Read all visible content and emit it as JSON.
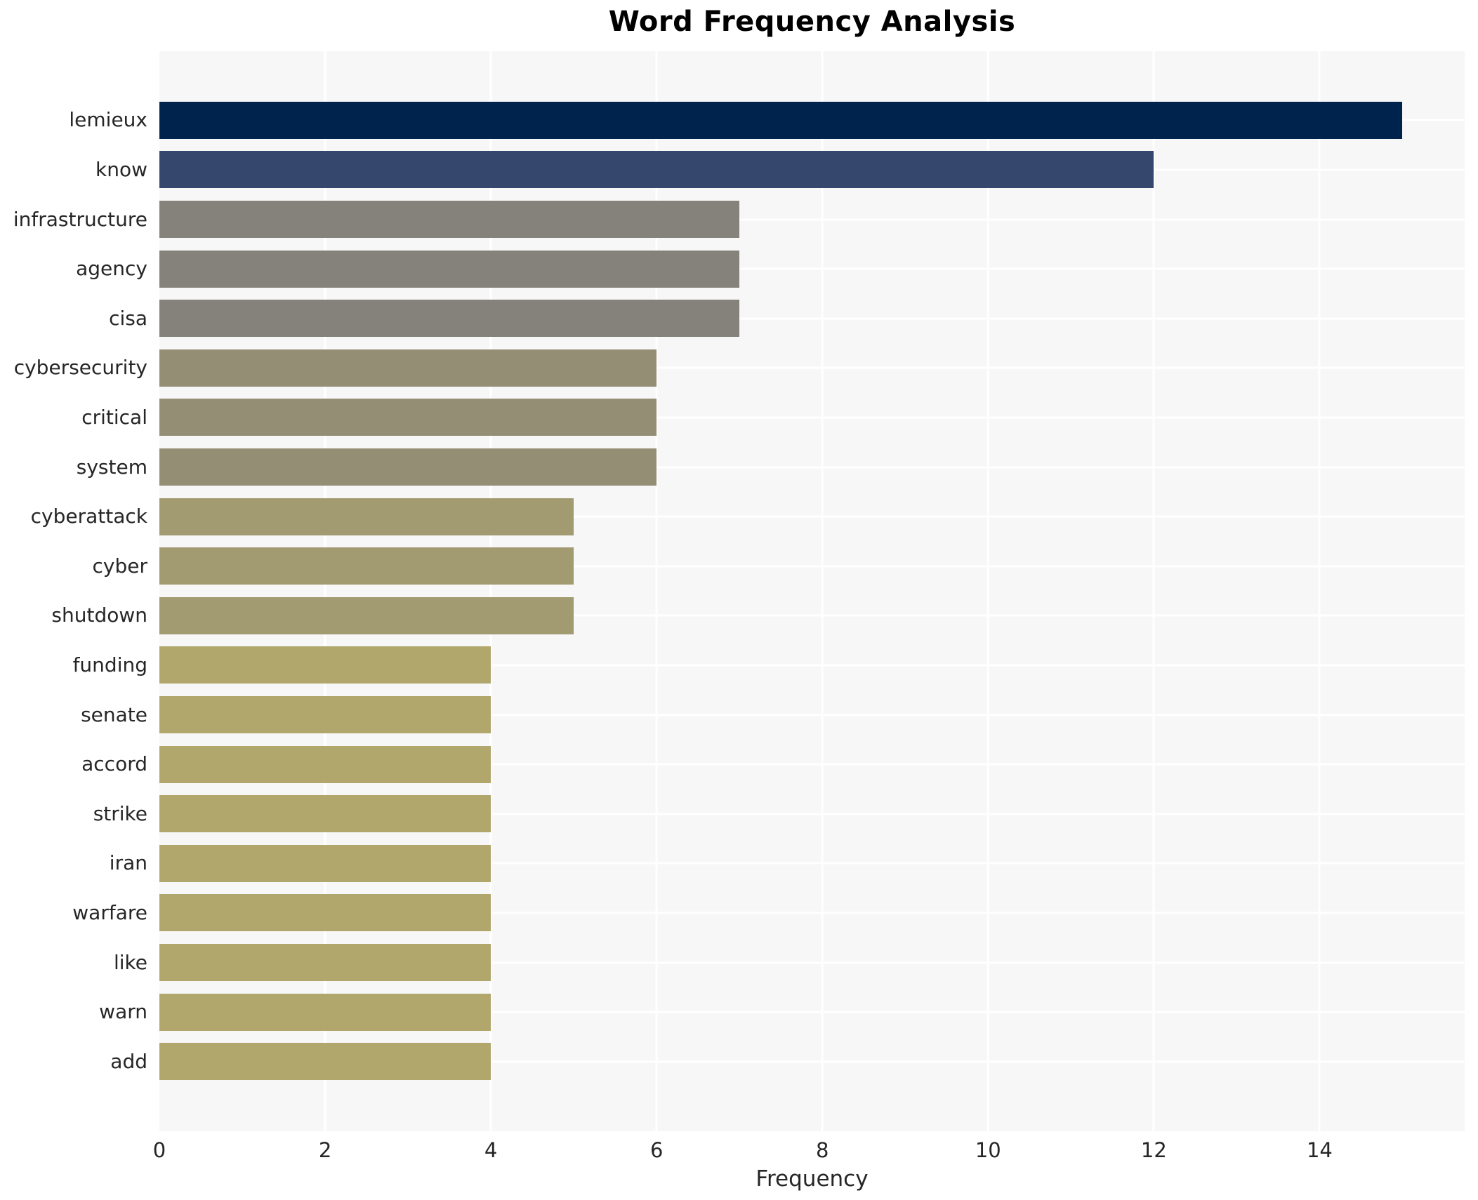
{
  "chart_data": {
    "type": "bar",
    "orientation": "horizontal",
    "title": "Word Frequency Analysis",
    "xlabel": "Frequency",
    "ylabel": "",
    "categories": [
      "lemieux",
      "know",
      "infrastructure",
      "agency",
      "cisa",
      "cybersecurity",
      "critical",
      "system",
      "cyberattack",
      "cyber",
      "shutdown",
      "funding",
      "senate",
      "accord",
      "strike",
      "iran",
      "warfare",
      "like",
      "warn",
      "add"
    ],
    "values": [
      15,
      12,
      7,
      7,
      7,
      6,
      6,
      6,
      5,
      5,
      5,
      4,
      4,
      4,
      4,
      4,
      4,
      4,
      4,
      4
    ],
    "bar_colors": [
      "#00234e",
      "#35476c",
      "#85827b",
      "#85827b",
      "#85827b",
      "#948e75",
      "#948e75",
      "#948e75",
      "#a29a71",
      "#a29a71",
      "#a29a71",
      "#b1a76d",
      "#b1a76d",
      "#b1a76d",
      "#b1a76d",
      "#b1a76d",
      "#b1a76d",
      "#b1a76d",
      "#b1a76d",
      "#b1a76d"
    ],
    "xlim": [
      0,
      15.75
    ],
    "xticks": [
      0,
      2,
      4,
      6,
      8,
      10,
      12,
      14
    ],
    "legend": "none",
    "grid": "white vertical lines at x ticks and horizontal lines at category centers",
    "colors": {
      "figure_background": "#ffffff",
      "panel_background": "#f7f7f7",
      "gridline": "#ffffff",
      "tick_text": "#262626",
      "title_text": "#000000"
    }
  }
}
